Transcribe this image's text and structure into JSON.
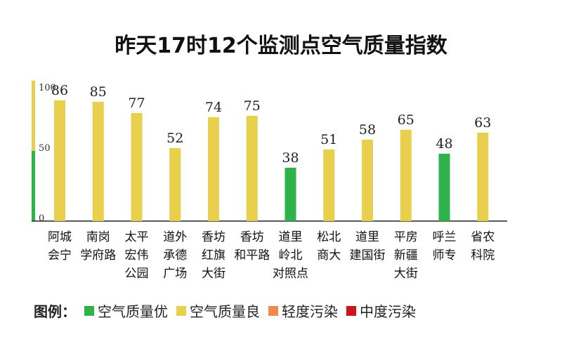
{
  "title": "昨天17时12个监测点空气质量指数",
  "chart_data": {
    "type": "bar",
    "title": "昨天17时12个监测点空气质量指数",
    "categories": [
      [
        "阿城",
        "会宁"
      ],
      [
        "南岗",
        "学府路"
      ],
      [
        "太平",
        "宏伟",
        "公园"
      ],
      [
        "道外",
        "承德",
        "广场"
      ],
      [
        "香坊",
        "红旗",
        "大街"
      ],
      [
        "香坊",
        "和平路"
      ],
      [
        "道里",
        "岭北",
        "对照点"
      ],
      [
        "松北",
        "商大"
      ],
      [
        "道里",
        "建国街"
      ],
      [
        "平房",
        "新疆",
        "大街"
      ],
      [
        "呼兰",
        "师专"
      ],
      [
        "省农",
        "科院"
      ]
    ],
    "values": [
      86,
      85,
      77,
      52,
      74,
      75,
      38,
      51,
      58,
      65,
      48,
      63
    ],
    "levels": [
      "良",
      "良",
      "良",
      "良",
      "良",
      "良",
      "优",
      "良",
      "良",
      "良",
      "优",
      "良"
    ],
    "ylim": [
      0,
      100
    ],
    "yticks": [
      "100",
      "50",
      "0"
    ],
    "legend_position": "bottom-left"
  },
  "legend": {
    "label": "图例：",
    "items": [
      {
        "text": "空气质量优",
        "color": "#2eb34a"
      },
      {
        "text": "空气质量良",
        "color": "#e8cf4c"
      },
      {
        "text": "轻度污染",
        "color": "#ee8a4e"
      },
      {
        "text": "中度污染",
        "color": "#d0121b"
      }
    ]
  },
  "colors": {
    "优": "#2eb34a",
    "良": "#e8cf4c",
    "axis": "#222222",
    "scale_good": "#2eb34a",
    "scale_moderate": "#e8cf4c"
  }
}
